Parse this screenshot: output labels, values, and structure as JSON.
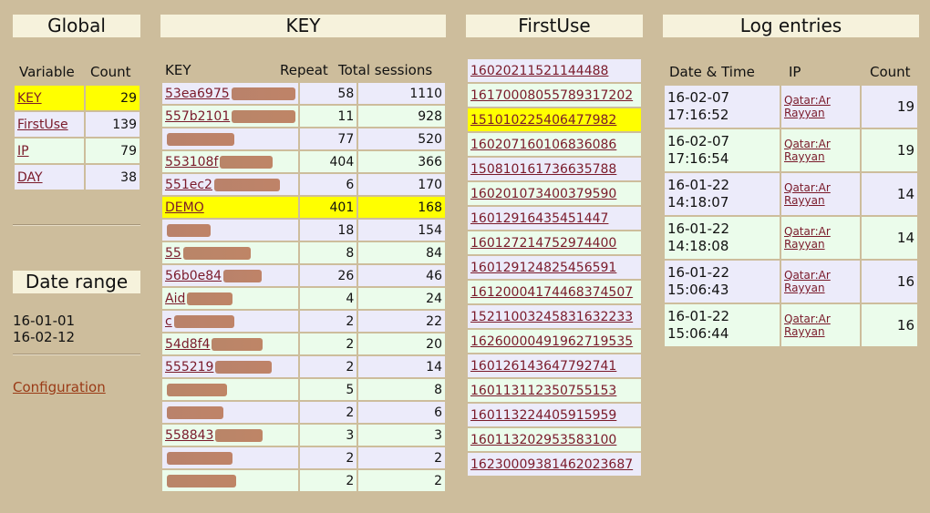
{
  "headers": {
    "global": "Global",
    "key": "KEY",
    "firstuse": "FirstUse",
    "log": "Log entries",
    "daterange": "Date range"
  },
  "global": {
    "col_variable": "Variable",
    "col_count": "Count",
    "rows": [
      {
        "variable": "KEY",
        "count": "29",
        "highlight": true
      },
      {
        "variable": "FirstUse",
        "count": "139"
      },
      {
        "variable": "IP",
        "count": "79"
      },
      {
        "variable": "DAY",
        "count": "38"
      }
    ]
  },
  "daterange": {
    "from": "16-01-01",
    "to": "16-02-12"
  },
  "configuration_link": "Configuration",
  "key_table": {
    "col_key": "KEY",
    "col_repeat": "Repeat",
    "col_sessions": "Total sessions",
    "rows": [
      {
        "key": "53ea6975",
        "repeat": "58",
        "sessions": "1110"
      },
      {
        "key": "557b2101",
        "repeat": "11",
        "sessions": "928"
      },
      {
        "key": "",
        "repeat": "77",
        "sessions": "520"
      },
      {
        "key": "553108f",
        "repeat": "404",
        "sessions": "366"
      },
      {
        "key": "551ec2",
        "repeat": "6",
        "sessions": "170"
      },
      {
        "key": "DEMO",
        "repeat": "401",
        "sessions": "168",
        "highlight": true
      },
      {
        "key": "",
        "repeat": "18",
        "sessions": "154"
      },
      {
        "key": "55",
        "repeat": "8",
        "sessions": "84"
      },
      {
        "key": "56b0e84",
        "repeat": "26",
        "sessions": "46"
      },
      {
        "key": "Aid",
        "repeat": "4",
        "sessions": "24"
      },
      {
        "key": "c",
        "repeat": "2",
        "sessions": "22"
      },
      {
        "key": "54d8f4",
        "repeat": "2",
        "sessions": "20"
      },
      {
        "key": "555219",
        "repeat": "2",
        "sessions": "14"
      },
      {
        "key": "",
        "repeat": "5",
        "sessions": "8"
      },
      {
        "key": "",
        "repeat": "2",
        "sessions": "6"
      },
      {
        "key": "558843",
        "repeat": "3",
        "sessions": "3"
      },
      {
        "key": "",
        "repeat": "2",
        "sessions": "2"
      },
      {
        "key": "",
        "repeat": "2",
        "sessions": "2"
      }
    ]
  },
  "firstuse": {
    "rows": [
      {
        "id": "16020211521144488"
      },
      {
        "id": "16170008055789317202"
      },
      {
        "id": "151010225406477982",
        "highlight": true
      },
      {
        "id": "160207160106836086"
      },
      {
        "id": "150810161736635788"
      },
      {
        "id": "160201073400379590"
      },
      {
        "id": "16012916435451447"
      },
      {
        "id": "160127214752974400"
      },
      {
        "id": "160129124825456591"
      },
      {
        "id": "16120004174468374507"
      },
      {
        "id": "15211003245831632233"
      },
      {
        "id": "16260000491962719535"
      },
      {
        "id": "160126143647792741"
      },
      {
        "id": "160113112350755153"
      },
      {
        "id": "160113224405915959"
      },
      {
        "id": "160113202953583100"
      },
      {
        "id": "16230009381462023687"
      }
    ]
  },
  "log": {
    "col_date": "Date & Time",
    "col_ip": "IP",
    "col_count": "Count",
    "rows": [
      {
        "date": "16-02-07",
        "time": "17:16:52",
        "ip_line1": "Qatar:Ar",
        "ip_line2": "Rayyan",
        "count": "19"
      },
      {
        "date": "16-02-07",
        "time": "17:16:54",
        "ip_line1": "Qatar:Ar",
        "ip_line2": "Rayyan",
        "count": "19"
      },
      {
        "date": "16-01-22",
        "time": "14:18:07",
        "ip_line1": "Qatar:Ar",
        "ip_line2": "Rayyan",
        "count": "14"
      },
      {
        "date": "16-01-22",
        "time": "14:18:08",
        "ip_line1": "Qatar:Ar",
        "ip_line2": "Rayyan",
        "count": "14"
      },
      {
        "date": "16-01-22",
        "time": "15:06:43",
        "ip_line1": "Qatar:Ar",
        "ip_line2": "Rayyan",
        "count": "16"
      },
      {
        "date": "16-01-22",
        "time": "15:06:44",
        "ip_line1": "Qatar:Ar",
        "ip_line2": "Rayyan",
        "count": "16"
      }
    ]
  }
}
